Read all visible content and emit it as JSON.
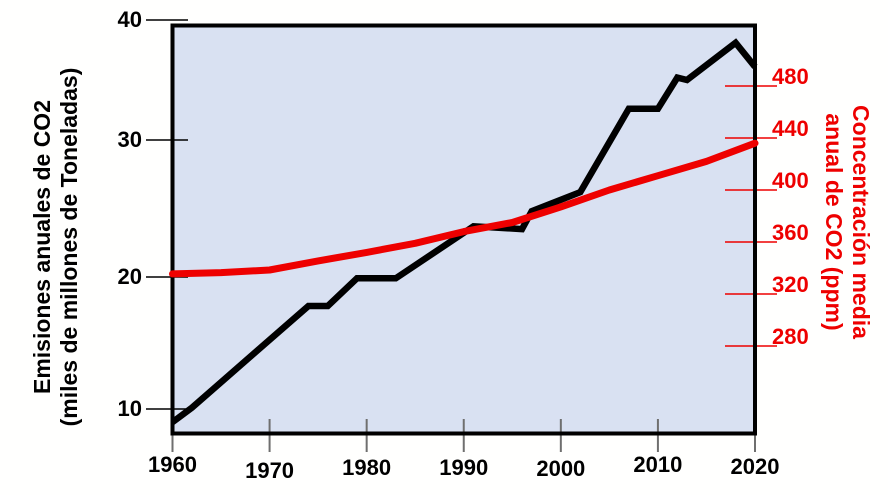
{
  "chart_data": {
    "type": "line",
    "title": "",
    "grid": false,
    "legend": "none",
    "plot_background": "#d9e1f2",
    "x_axis": {
      "tick_labels": [
        "1960",
        "1970",
        "1980",
        "1990",
        "2000",
        "2010",
        "2020"
      ],
      "tick_values": [
        1960,
        1970,
        1980,
        1990,
        2000,
        2010,
        2020
      ],
      "range": [
        1960,
        2020
      ]
    },
    "left_axis": {
      "title_line1": "Emisiones anuales de CO2",
      "title_line2": "(miles de millones de Toneladas)",
      "tick_labels": [
        "40",
        "30",
        "20",
        "10"
      ],
      "tick_values": [
        40,
        30,
        20,
        10
      ],
      "color": "#000000"
    },
    "right_axis": {
      "title_line1": "Concentración media",
      "title_line2": "anual de CO2 (ppm)",
      "tick_labels": [
        "480",
        "440",
        "400",
        "360",
        "320",
        "280"
      ],
      "tick_values": [
        480,
        440,
        400,
        360,
        320,
        280
      ],
      "unit": "ppm",
      "color": "#ee0000"
    },
    "series": [
      {
        "name": "emisiones-anuales-co2",
        "axis": "left",
        "color": "#000000",
        "points": [
          [
            1960,
            9.0
          ],
          [
            1962,
            10.1
          ],
          [
            1974,
            17.8
          ],
          [
            1976,
            17.8
          ],
          [
            1979,
            19.9
          ],
          [
            1983,
            19.9
          ],
          [
            1991,
            23.7
          ],
          [
            1996,
            23.5
          ],
          [
            1997,
            24.8
          ],
          [
            2002,
            26.2
          ],
          [
            2007,
            32.6
          ],
          [
            2010,
            32.6
          ],
          [
            2012,
            35.2
          ],
          [
            2013,
            35.0
          ],
          [
            2018,
            38.1
          ],
          [
            2020,
            36.1
          ]
        ]
      },
      {
        "name": "concentracion-media-anual-co2",
        "axis": "right",
        "color": "#ee0000",
        "points": [
          [
            1960,
            335.5
          ],
          [
            1965,
            336.5
          ],
          [
            1970,
            338.5
          ],
          [
            1975,
            345.5
          ],
          [
            1980,
            352
          ],
          [
            1985,
            359
          ],
          [
            1990,
            368
          ],
          [
            1995,
            375
          ],
          [
            2000,
            387
          ],
          [
            2005,
            400
          ],
          [
            2010,
            411
          ],
          [
            2015,
            422
          ],
          [
            2020,
            436
          ]
        ]
      }
    ]
  }
}
